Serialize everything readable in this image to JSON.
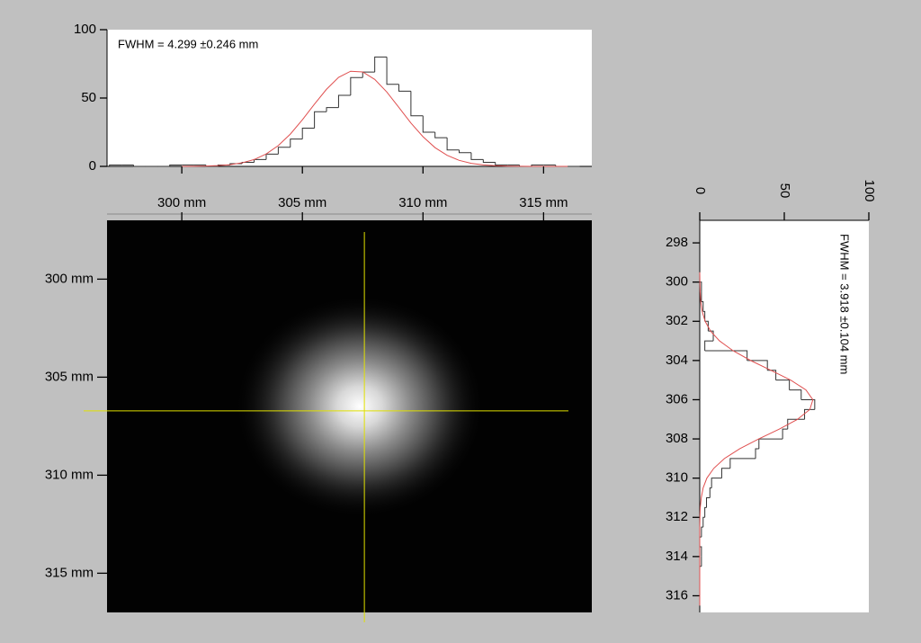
{
  "chart_data": [
    {
      "type": "histogram",
      "orientation": "vertical",
      "annotation": "FWHM = 4.299 ±0.246 mm",
      "color": "#333333",
      "bins": [
        297,
        297.5,
        298,
        298.5,
        299,
        299.5,
        300,
        300.5,
        301,
        301.5,
        302,
        302.5,
        303,
        303.5,
        304,
        304.5,
        305,
        305.5,
        306,
        306.5,
        307,
        307.5,
        308,
        308.5,
        309,
        309.5,
        310,
        310.5,
        311,
        311.5,
        312,
        312.5,
        313,
        313.5,
        314,
        314.5,
        315,
        315.5,
        316,
        316.5
      ],
      "values": [
        1,
        1,
        0,
        0,
        0,
        1,
        1,
        1,
        0,
        1,
        2,
        3,
        5,
        9,
        14,
        20,
        28,
        40,
        43,
        52,
        65,
        69,
        80,
        60,
        55,
        37,
        25,
        21,
        12,
        10,
        5,
        3,
        1,
        1,
        0,
        1,
        1,
        0,
        0
      ],
      "fit": {
        "color": "#e05050",
        "x": [
          300,
          300.5,
          301,
          301.5,
          302,
          302.5,
          303,
          303.5,
          304,
          304.5,
          305,
          305.5,
          306,
          306.5,
          307,
          307.5,
          308,
          308.5,
          309,
          309.5,
          310,
          310.5,
          311,
          311.5,
          312,
          312.5,
          313,
          313.5,
          314,
          314.5,
          315,
          315.5,
          316
        ],
        "values": [
          0.03,
          0.09,
          0.22,
          0.55,
          1.2,
          2.6,
          5.0,
          9.1,
          15.2,
          23.6,
          34.1,
          45.5,
          56.4,
          65.1,
          69.6,
          69.1,
          63.6,
          54.4,
          43.1,
          31.7,
          21.7,
          13.7,
          8.1,
          4.4,
          2.2,
          1.1,
          0.46,
          0.19,
          0.07,
          0.02,
          0.01,
          0,
          0
        ]
      },
      "xlim": [
        296.9,
        317.0
      ],
      "ylim": [
        0,
        100
      ],
      "yticks": [
        0,
        50,
        100
      ]
    },
    {
      "type": "image",
      "xlim": [
        296.9,
        317.0
      ],
      "ylim": [
        297.0,
        317.0
      ],
      "xticks": [
        {
          "value": 300,
          "label": "300 mm"
        },
        {
          "value": 305,
          "label": "305 mm"
        },
        {
          "value": 310,
          "label": "310 mm"
        },
        {
          "value": 315,
          "label": "315 mm"
        }
      ],
      "yticks": [
        {
          "value": 300,
          "label": "300 mm"
        },
        {
          "value": 305,
          "label": "305 mm"
        },
        {
          "value": 310,
          "label": "310 mm"
        },
        {
          "value": 315,
          "label": "315 mm"
        }
      ],
      "crosshair": {
        "x": 307.57,
        "y": 306.72,
        "color": "#e0e000"
      }
    },
    {
      "type": "histogram",
      "orientation": "horizontal",
      "annotation": "FWHM = 3.918 ±0.104 mm",
      "color": "#333333",
      "bins": [
        299.5,
        300,
        300.5,
        301,
        301.5,
        302,
        302.5,
        303,
        303.5,
        304,
        304.5,
        305,
        305.5,
        306,
        306.5,
        307,
        307.5,
        308,
        308.5,
        309,
        309.5,
        310,
        310.5,
        311,
        311.5,
        312,
        312.5,
        313,
        313.5,
        314,
        314.5,
        315,
        315.5,
        316,
        316.5
      ],
      "values": [
        0,
        1,
        1,
        2,
        3,
        5,
        8,
        3,
        28,
        40,
        45,
        53,
        60,
        68,
        62,
        52,
        49,
        35,
        33,
        18,
        13,
        7,
        6,
        4,
        3,
        2,
        1,
        0,
        1,
        1,
        0,
        0,
        0,
        0
      ],
      "fit": {
        "color": "#e05050",
        "x": [
          299.5,
          300,
          300.5,
          301,
          301.5,
          302,
          302.5,
          303,
          303.5,
          304,
          304.5,
          305,
          305.5,
          306,
          306.5,
          307,
          307.5,
          308,
          308.5,
          309,
          309.5,
          310,
          310.5,
          311,
          311.5,
          312,
          312.5,
          313,
          313.5,
          314,
          314.5,
          315,
          315.5,
          316,
          316.5
        ],
        "values": [
          0,
          0.08,
          0.23,
          0.6,
          1.45,
          3.2,
          6.4,
          11.7,
          19.7,
          30.1,
          42.1,
          53.8,
          62.8,
          66.9,
          65.1,
          57.8,
          47.0,
          34.9,
          23.7,
          14.6,
          8.3,
          4.2,
          2.0,
          0.9,
          0.3,
          0.1,
          0,
          0,
          0,
          0,
          0,
          0,
          0,
          0,
          0
        ]
      },
      "xlim": [
        0,
        100
      ],
      "xticks": [
        0,
        50,
        100
      ],
      "ylim": [
        296.85,
        316.85
      ],
      "yticks": [
        298,
        300,
        302,
        304,
        306,
        308,
        310,
        312,
        314,
        316
      ]
    }
  ]
}
